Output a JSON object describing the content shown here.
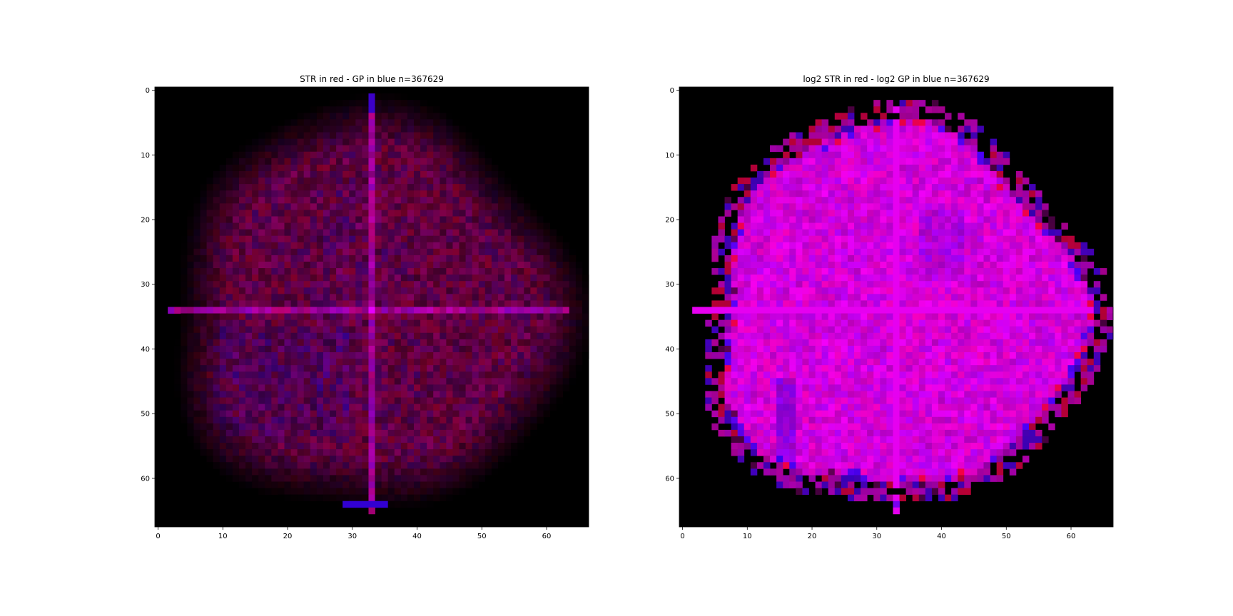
{
  "chart_data": [
    {
      "type": "heatmap",
      "title": "STR in red - GP in blue    n=367629",
      "xlabel": "",
      "ylabel": "",
      "x_ticks": [
        0,
        10,
        20,
        30,
        40,
        50,
        60
      ],
      "y_ticks": [
        0,
        10,
        20,
        30,
        40,
        50,
        60
      ],
      "xlim": [
        -0.5,
        66.5
      ],
      "ylim": [
        67.5,
        -0.5
      ],
      "grid": false,
      "legend": "none",
      "image_grid": [
        67,
        68
      ],
      "colors": {
        "background": "#000000",
        "red_channel": "STR",
        "blue_channel": "GP",
        "dominant": "#6a1050"
      },
      "intensity": "low"
    },
    {
      "type": "heatmap",
      "title": "log2 STR in red - log2 GP in blue    n=367629",
      "xlabel": "",
      "ylabel": "",
      "x_ticks": [
        0,
        10,
        20,
        30,
        40,
        50,
        60
      ],
      "y_ticks": [
        0,
        10,
        20,
        30,
        40,
        50,
        60
      ],
      "xlim": [
        -0.5,
        66.5
      ],
      "ylim": [
        67.5,
        -0.5
      ],
      "grid": false,
      "legend": "none",
      "image_grid": [
        67,
        68
      ],
      "colors": {
        "background": "#000000",
        "red_channel": "log2 STR",
        "blue_channel": "log2 GP",
        "dominant": "#d010cc"
      },
      "intensity": "high"
    }
  ]
}
